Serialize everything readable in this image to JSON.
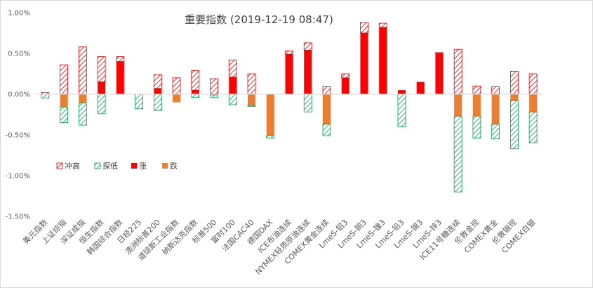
{
  "chart_data": {
    "type": "bar",
    "title": "重要指数 (2019-12-19 08:47)",
    "ylim": [
      -0.015,
      0.01
    ],
    "yticks": [
      0.01,
      0.005,
      0,
      -0.005,
      -0.01,
      -0.015
    ],
    "yticklabels": [
      "1.00%",
      "0.50%",
      "0.00%",
      "-0.50%",
      "-1.00%",
      "-1.50%"
    ],
    "grid": false,
    "legend_position": "left-middle",
    "stacked": true,
    "categories": [
      "美元指数",
      "上证综指",
      "深证成指",
      "恒生指数",
      "韩国综合指数",
      "日经225",
      "澳洲标普200",
      "道琼斯工业指数",
      "纳斯达克指数",
      "标普500",
      "富时100",
      "法国CAC40",
      "德国DAX",
      "ICE布油连续",
      "NYMEX轻质原油连续",
      "COMEX黄金连续",
      "LmeS-铝3",
      "LmeS-铜3",
      "LmeS-镍3",
      "LmeS-铅3",
      "LmeS-锡3",
      "LmeS-锌3",
      "ICE11号糖连续",
      "伦敦金现",
      "COMEX黄金",
      "伦敦银现",
      "COMEX白银"
    ],
    "series": [
      {
        "name": "冲高",
        "color": "#e00000",
        "pattern": "hatch-red",
        "values": [
          0.0002,
          0.0036,
          0.0058,
          0.0031,
          0.0006,
          0,
          0.0017,
          0.002,
          0.0024,
          0.0019,
          0.0021,
          0.0025,
          0,
          0.0004,
          0.0009,
          0.0009,
          0.0005,
          0.0013,
          0.0005,
          0,
          0,
          0.0001,
          0.0055,
          0.001,
          0.0009,
          0.0028,
          0.0025
        ]
      },
      {
        "name": "探低",
        "color": "#00a050",
        "pattern": "hatch-green",
        "values": [
          -0.0005,
          -0.0019,
          -0.0027,
          -0.0024,
          0,
          -0.0018,
          -0.002,
          0,
          -0.0004,
          -0.0003,
          -0.0013,
          -0.0001,
          -0.0003,
          0,
          -0.0022,
          -0.0014,
          0,
          0,
          0,
          -0.004,
          0,
          0,
          -0.0093,
          -0.0027,
          -0.0018,
          -0.0059,
          -0.0038
        ]
      },
      {
        "name": "涨",
        "color": "#ff0000",
        "pattern": "solid",
        "values": [
          0,
          0,
          0,
          0.0015,
          0.004,
          0,
          0.0007,
          0,
          0.0005,
          0,
          0.0021,
          0,
          0,
          0.0049,
          0.0054,
          0,
          0.002,
          0.0075,
          0.0082,
          0.0005,
          0.0015,
          0.005,
          0,
          0,
          0,
          0,
          0
        ]
      },
      {
        "name": "跌",
        "color": "#ed7d31",
        "pattern": "solid",
        "values": [
          0,
          -0.0016,
          -0.0011,
          0,
          0,
          0,
          0,
          -0.001,
          0,
          -0.0001,
          0,
          -0.0014,
          -0.0051,
          0,
          0,
          -0.0037,
          0,
          0,
          0,
          0,
          0,
          0,
          -0.0027,
          -0.0027,
          -0.0037,
          -0.0008,
          -0.0022
        ]
      }
    ]
  }
}
